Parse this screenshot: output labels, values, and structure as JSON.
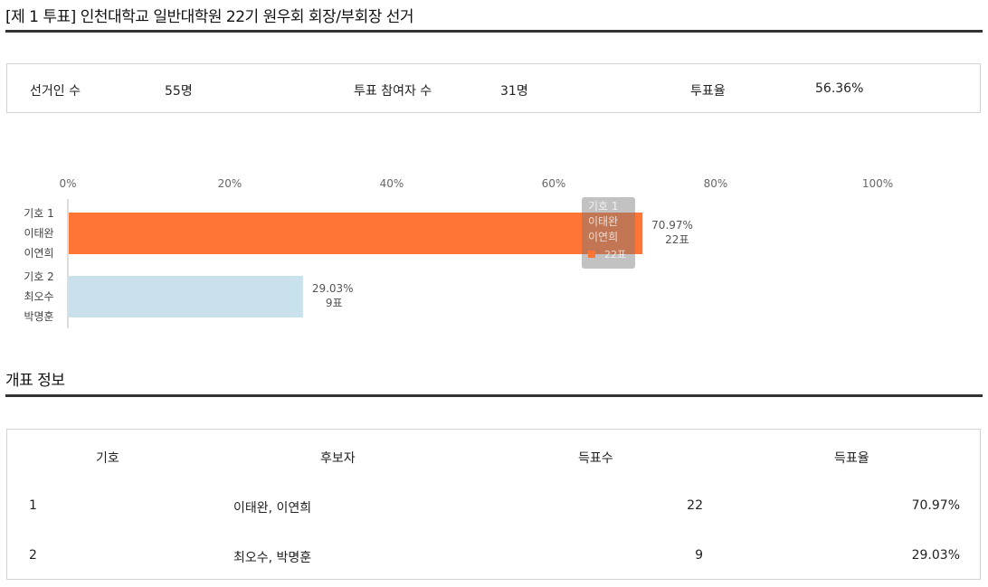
{
  "page": {
    "title": "[제 1 투표] 인천대학교 일반대학원 22기 원우회 회장/부회장 선거"
  },
  "summary": {
    "electorate_label": "선거인 수",
    "electorate_value": "55명",
    "participants_label": "투표 참여자 수",
    "participants_value": "31명",
    "turnout_label": "투표율",
    "turnout_value": "56.36%"
  },
  "chart_data": {
    "type": "bar",
    "orientation": "horizontal",
    "xlim": [
      0,
      100
    ],
    "x_ticks": [
      "0%",
      "20%",
      "40%",
      "60%",
      "80%",
      "100%"
    ],
    "categories": [
      [
        "기호 1",
        "이태완",
        "이연희"
      ],
      [
        "기호 2",
        "최오수",
        "박명훈"
      ]
    ],
    "values": [
      70.97,
      29.03
    ],
    "value_labels": [
      "70.97%",
      "29.03%"
    ],
    "vote_labels": [
      "22표",
      "9표"
    ],
    "colors": [
      "#ff7535",
      "#c9e1ed"
    ],
    "tooltip": {
      "lines": [
        "기호 1",
        "이태완",
        "이연희"
      ],
      "votes": "22표",
      "color": "#ff7535"
    }
  },
  "tally": {
    "title": "개표 정보",
    "headers": {
      "number": "기호",
      "candidates": "후보자",
      "votes": "득표수",
      "rate": "득표율"
    },
    "rows": [
      {
        "number": "1",
        "candidates": "이태완, 이연희",
        "votes": "22",
        "rate": "70.97%"
      },
      {
        "number": "2",
        "candidates": "최오수, 박명훈",
        "votes": "9",
        "rate": "29.03%"
      }
    ]
  }
}
